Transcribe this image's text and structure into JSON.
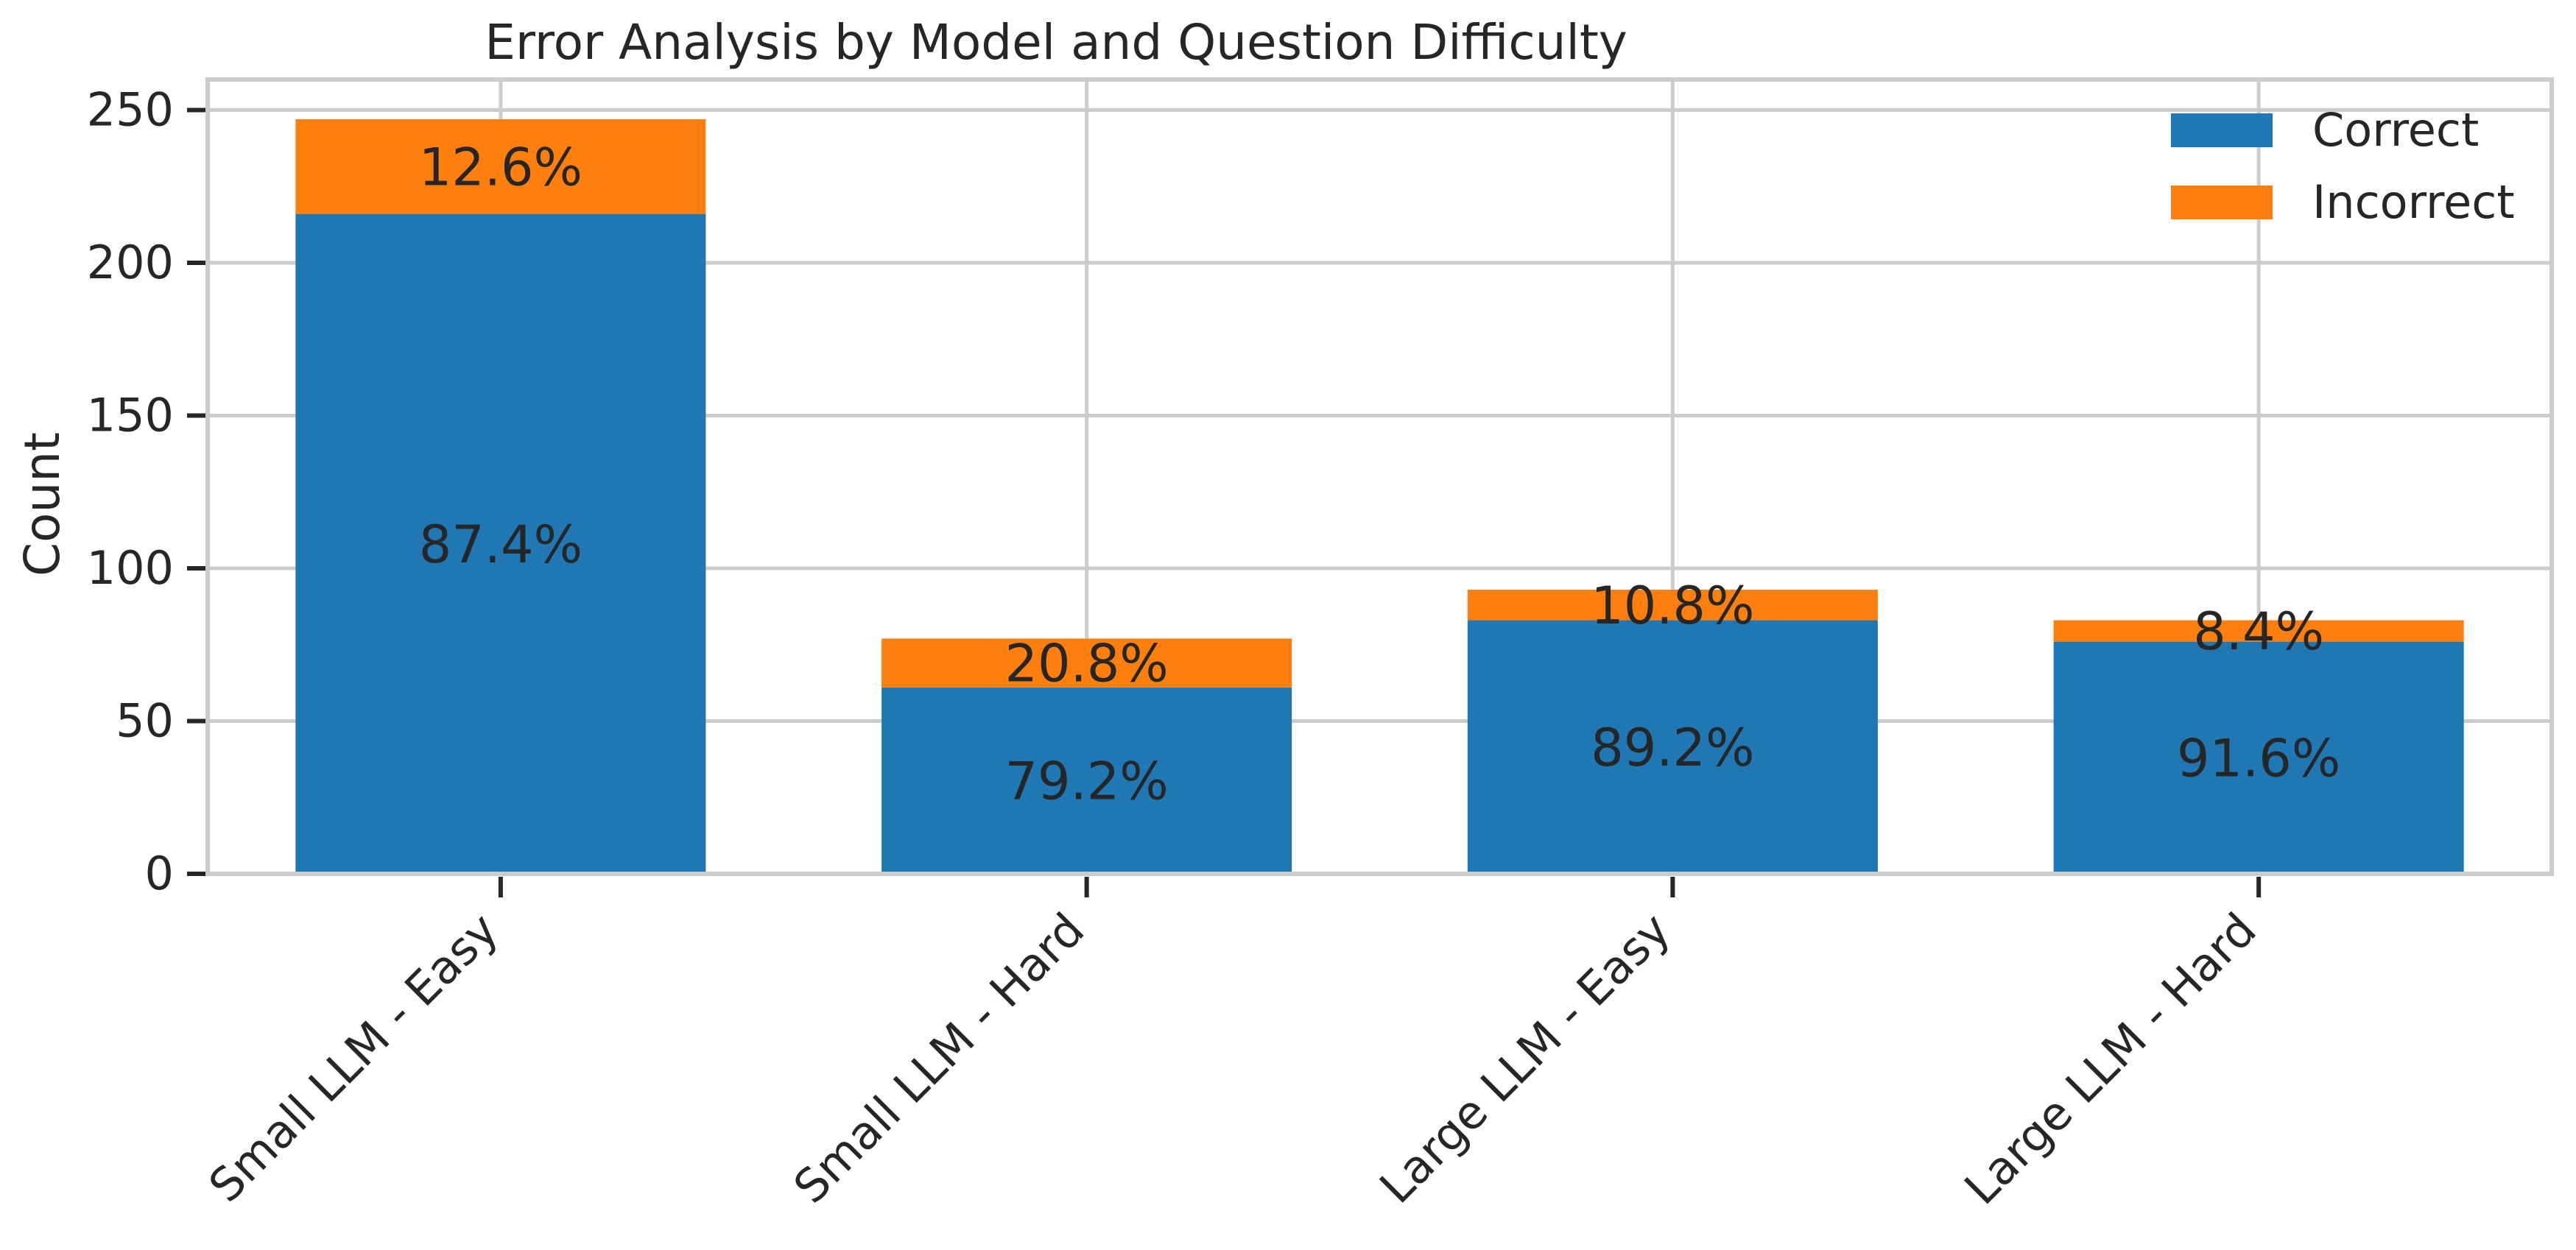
{
  "chart_data": {
    "type": "bar",
    "stacked": true,
    "title": "Error Analysis by Model and Question Difficulty",
    "xlabel": "",
    "ylabel": "Count",
    "ylim": [
      0,
      260
    ],
    "yticks": [
      0,
      50,
      100,
      150,
      200,
      250
    ],
    "grid": true,
    "legend_position": "top-right",
    "categories": [
      "Small LLM - Easy",
      "Small LLM - Hard",
      "Large LLM - Easy",
      "Large LLM - Hard"
    ],
    "series": [
      {
        "name": "Correct",
        "color": "#1f77b4",
        "values": [
          216,
          61,
          83,
          76
        ],
        "labels": [
          "87.4%",
          "79.2%",
          "89.2%",
          "91.6%"
        ]
      },
      {
        "name": "Incorrect",
        "color": "#ff7f0e",
        "values": [
          31,
          16,
          10,
          7
        ],
        "labels": [
          "12.6%",
          "20.8%",
          "10.8%",
          "8.4%"
        ]
      }
    ]
  }
}
